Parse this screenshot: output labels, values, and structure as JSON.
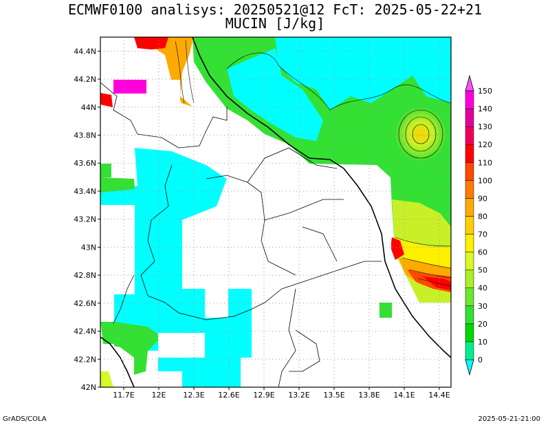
{
  "header": {
    "line1": "ECMWF0100 analisys: 20250521@12 FcT: 2025-05-22+21",
    "line2": "MUCIN [J/kg]"
  },
  "footer": {
    "left": "GrADS/COLA",
    "right": "2025-05-21-21:00"
  },
  "map": {
    "lon_range": [
      11.5,
      14.5
    ],
    "lat_range": [
      42.0,
      44.5
    ],
    "lon_ticks": [
      {
        "value": 11.7,
        "label": "11.7E"
      },
      {
        "value": 12.0,
        "label": "12E"
      },
      {
        "value": 12.3,
        "label": "12.3E"
      },
      {
        "value": 12.6,
        "label": "12.6E"
      },
      {
        "value": 12.9,
        "label": "12.9E"
      },
      {
        "value": 13.2,
        "label": "13.2E"
      },
      {
        "value": 13.5,
        "label": "13.5E"
      },
      {
        "value": 13.8,
        "label": "13.8E"
      },
      {
        "value": 14.1,
        "label": "14.1E"
      },
      {
        "value": 14.4,
        "label": "14.4E"
      }
    ],
    "lat_ticks": [
      {
        "value": 42.0,
        "label": "42N"
      },
      {
        "value": 42.2,
        "label": "42.2N"
      },
      {
        "value": 42.4,
        "label": "42.4N"
      },
      {
        "value": 42.6,
        "label": "42.6N"
      },
      {
        "value": 42.8,
        "label": "42.8N"
      },
      {
        "value": 43.0,
        "label": "43N"
      },
      {
        "value": 43.2,
        "label": "43.2N"
      },
      {
        "value": 43.4,
        "label": "43.4N"
      },
      {
        "value": 43.6,
        "label": "43.6N"
      },
      {
        "value": 43.8,
        "label": "43.8N"
      },
      {
        "value": 44.0,
        "label": "44N"
      },
      {
        "value": 44.2,
        "label": "44.2N"
      },
      {
        "value": 44.4,
        "label": "44.4N"
      }
    ],
    "grid": true
  },
  "colorbar": {
    "labels": [
      "0",
      "10",
      "20",
      "30",
      "40",
      "50",
      "60",
      "70",
      "80",
      "90",
      "100",
      "110",
      "120",
      "130",
      "140",
      "150"
    ],
    "colors": [
      "#00ffff",
      "#00ee90",
      "#00d800",
      "#33e033",
      "#6ee62e",
      "#a8f028",
      "#d8f828",
      "#fff000",
      "#ffd000",
      "#ffaa00",
      "#ff7a00",
      "#ff4800",
      "#ff0000",
      "#f0005a",
      "#e4009c",
      "#ff00dc",
      "#ff50ff"
    ]
  }
}
